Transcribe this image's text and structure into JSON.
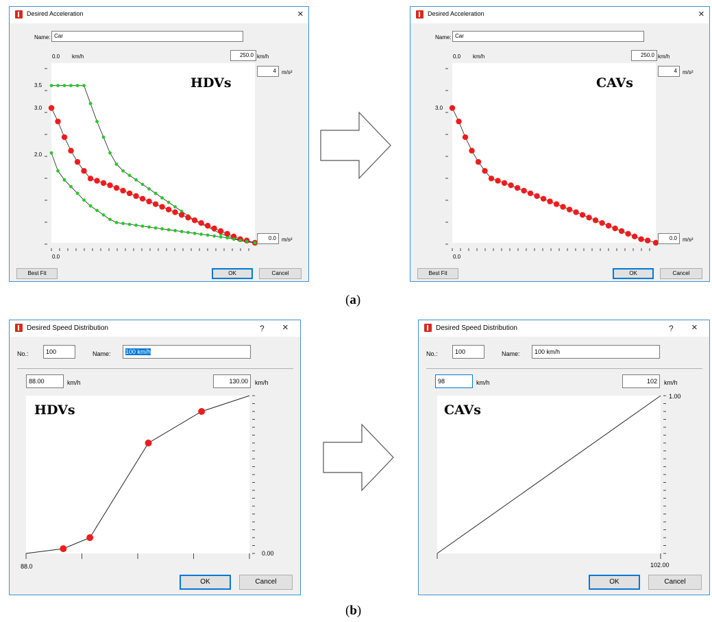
{
  "accel_hdv": {
    "title": "Desired Acceleration",
    "name_label": "Name:",
    "name_value": "Car",
    "speed_min": "0.0",
    "speed_unit": "km/h",
    "speed_max": "250.0",
    "speed_max_unit": "km/h",
    "accel_max": "4",
    "accel_unit": "m/s²",
    "accel_min": "0.0",
    "accel_min_unit": "m/s²",
    "y_ticks": [
      "3.5",
      "3.0",
      "2.0"
    ],
    "x_start": "0.0",
    "overlay": "HDVs",
    "best_fit": "Best Fit",
    "ok": "OK",
    "cancel": "Cancel"
  },
  "accel_cav": {
    "title": "Desired Acceleration",
    "name_label": "Name:",
    "name_value": "Car",
    "speed_min": "0.0",
    "speed_unit": "km/h",
    "speed_max": "250.0",
    "speed_max_unit": "km/h",
    "accel_max": "4",
    "accel_unit": "m/s²",
    "accel_min": "0.0",
    "accel_min_unit": "m/s²",
    "y_ticks": [
      "3.0"
    ],
    "x_start": "0.0",
    "overlay": "CAVs",
    "best_fit": "Best Fit",
    "ok": "OK",
    "cancel": "Cancel"
  },
  "speed_hdv": {
    "title": "Desired Speed Distribution",
    "help": "?",
    "no_label": "No.:",
    "no_value": "100",
    "name_label": "Name:",
    "name_value": "100 km/h",
    "min_value": "88.00",
    "min_unit": "km/h",
    "max_value": "130.00",
    "max_unit": "km/h",
    "y_max": "",
    "y_min": "0.00",
    "x_start": "88.0",
    "x_end": "",
    "overlay": "HDVs",
    "ok": "OK",
    "cancel": "Cancel"
  },
  "speed_cav": {
    "title": "Desired Speed Distribution",
    "help": "?",
    "no_label": "No.:",
    "no_value": "100",
    "name_label": "Name:",
    "name_value": "100 km/h",
    "min_value": "98",
    "min_unit": "km/h",
    "max_value": "102",
    "max_unit": "km/h",
    "y_max": "1.00",
    "y_min": "",
    "x_start": "",
    "x_end": "102.00",
    "overlay": "CAVs",
    "ok": "OK",
    "cancel": "Cancel"
  },
  "captions": {
    "a": "a",
    "b": "b"
  },
  "colors": {
    "red_point": "#ee1c1c",
    "green_point": "#22cc22",
    "line": "#333333",
    "accent": "#0078d7"
  },
  "chart_data": [
    {
      "type": "line",
      "title": "",
      "xlabel": "km/h",
      "ylabel": "m/s²",
      "xlim": [
        0,
        250
      ],
      "ylim": [
        0,
        4
      ],
      "series": [
        {
          "x": [
            0,
            8,
            16,
            24,
            32,
            40,
            48,
            56,
            64,
            72,
            80,
            88,
            96,
            104,
            112,
            120,
            128,
            136,
            144,
            152,
            160,
            168,
            176,
            184,
            192,
            200,
            208,
            216,
            224,
            232,
            240,
            250
          ],
          "values": [
            3.5,
            3.5,
            3.5,
            3.5,
            3.5,
            3.5,
            3.1,
            2.7,
            2.35,
            2.0,
            1.75,
            1.6,
            1.5,
            1.4,
            1.3,
            1.2,
            1.1,
            1.0,
            0.9,
            0.8,
            0.7,
            0.6,
            0.5,
            0.42,
            0.35,
            0.28,
            0.2,
            0.15,
            0.1,
            0.05,
            0.02,
            0.0
          ]
        },
        {
          "x": [
            0,
            8,
            16,
            24,
            32,
            40,
            48,
            56,
            64,
            72,
            80,
            88,
            96,
            104,
            112,
            120,
            128,
            136,
            144,
            152,
            160,
            168,
            176,
            184,
            192,
            200,
            208,
            216,
            224,
            232,
            240,
            250
          ],
          "values": [
            3.0,
            2.7,
            2.35,
            2.05,
            1.8,
            1.6,
            1.43,
            1.38,
            1.33,
            1.28,
            1.22,
            1.16,
            1.1,
            1.04,
            0.98,
            0.92,
            0.86,
            0.8,
            0.74,
            0.68,
            0.62,
            0.56,
            0.5,
            0.44,
            0.38,
            0.32,
            0.26,
            0.2,
            0.14,
            0.08,
            0.05,
            0.0
          ]
        },
        {
          "x": [
            0,
            8,
            16,
            24,
            32,
            40,
            48,
            56,
            64,
            72,
            80,
            88,
            96,
            104,
            112,
            120,
            128,
            136,
            144,
            152,
            160,
            168,
            176,
            184,
            192,
            200,
            208,
            216,
            224,
            232,
            240,
            250
          ],
          "values": [
            2.0,
            1.6,
            1.4,
            1.25,
            1.1,
            0.95,
            0.82,
            0.72,
            0.62,
            0.52,
            0.45,
            0.43,
            0.41,
            0.39,
            0.37,
            0.35,
            0.33,
            0.31,
            0.29,
            0.27,
            0.25,
            0.23,
            0.21,
            0.19,
            0.17,
            0.15,
            0.13,
            0.11,
            0.08,
            0.05,
            0.03,
            0.0
          ]
        }
      ]
    },
    {
      "type": "line",
      "title": "",
      "xlabel": "km/h",
      "ylabel": "m/s²",
      "xlim": [
        0,
        250
      ],
      "ylim": [
        0,
        4
      ],
      "series": [
        {
          "x": [
            0,
            8,
            16,
            24,
            32,
            40,
            48,
            56,
            64,
            72,
            80,
            88,
            96,
            104,
            112,
            120,
            128,
            136,
            144,
            152,
            160,
            168,
            176,
            184,
            192,
            200,
            208,
            216,
            224,
            232,
            240,
            250
          ],
          "values": [
            3.0,
            2.7,
            2.35,
            2.05,
            1.8,
            1.6,
            1.43,
            1.38,
            1.33,
            1.28,
            1.22,
            1.16,
            1.1,
            1.04,
            0.98,
            0.92,
            0.86,
            0.8,
            0.74,
            0.68,
            0.62,
            0.56,
            0.5,
            0.44,
            0.38,
            0.32,
            0.26,
            0.2,
            0.14,
            0.08,
            0.05,
            0.0
          ]
        }
      ]
    },
    {
      "type": "line",
      "title": "",
      "xlabel": "km/h",
      "ylabel": "",
      "xlim": [
        88,
        130
      ],
      "ylim": [
        0,
        1
      ],
      "series": [
        {
          "x": [
            88,
            95,
            100,
            111,
            121,
            130
          ],
          "values": [
            0.0,
            0.03,
            0.1,
            0.7,
            0.9,
            1.0
          ]
        }
      ]
    },
    {
      "type": "line",
      "title": "",
      "xlabel": "km/h",
      "ylabel": "",
      "xlim": [
        98,
        102
      ],
      "ylim": [
        0,
        1
      ],
      "series": [
        {
          "x": [
            98,
            102
          ],
          "values": [
            0.0,
            1.0
          ]
        }
      ]
    }
  ]
}
